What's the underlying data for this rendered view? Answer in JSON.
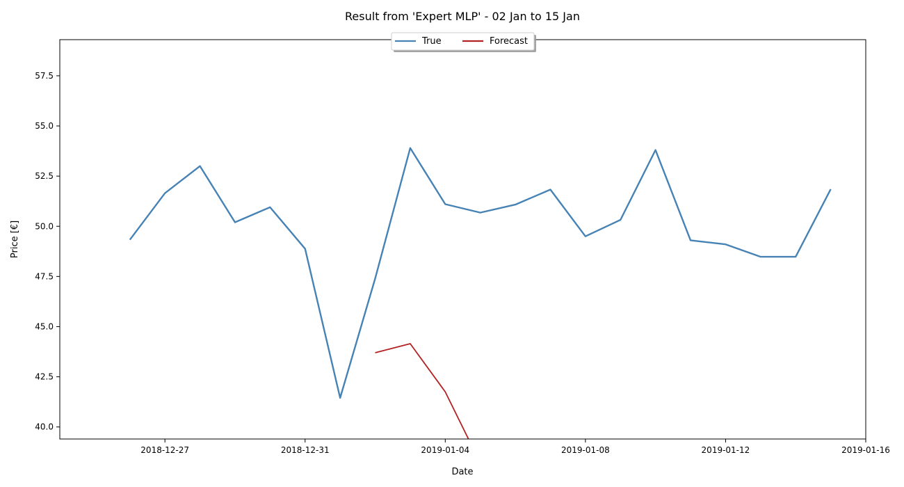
{
  "chart_data": {
    "type": "line",
    "title": "Result from 'Expert MLP' - 02 Jan to 15 Jan",
    "xlabel": "Date",
    "ylabel": "Price [€]",
    "xlim": [
      "2018-12-24",
      "2019-01-16"
    ],
    "ylim": [
      39.4,
      59.3
    ],
    "x_ticks": [
      "2018-12-27",
      "2018-12-31",
      "2019-01-04",
      "2019-01-08",
      "2019-01-12",
      "2019-01-16"
    ],
    "y_ticks": [
      40.0,
      42.5,
      45.0,
      47.5,
      50.0,
      52.5,
      55.0,
      57.5
    ],
    "y_tick_labels": [
      "40.0",
      "42.5",
      "45.0",
      "47.5",
      "50.0",
      "52.5",
      "55.0",
      "57.5"
    ],
    "grid": false,
    "legend_placement": "top-center",
    "series": [
      {
        "name": "True",
        "color": "#4682b4",
        "points": [
          [
            "2018-12-26",
            49.33
          ],
          [
            "2018-12-27",
            51.65
          ],
          [
            "2018-12-28",
            53.0
          ],
          [
            "2018-12-29",
            50.2
          ],
          [
            "2018-12-30",
            50.95
          ],
          [
            "2018-12-31",
            48.88
          ],
          [
            "2019-01-01",
            41.45
          ],
          [
            "2019-01-02",
            47.4
          ],
          [
            "2019-01-03",
            53.9
          ],
          [
            "2019-01-04",
            51.1
          ],
          [
            "2019-01-05",
            50.68
          ],
          [
            "2019-01-06",
            51.08
          ],
          [
            "2019-01-07",
            51.83
          ],
          [
            "2019-01-08",
            49.5
          ],
          [
            "2019-01-09",
            50.32
          ],
          [
            "2019-01-10",
            53.8
          ],
          [
            "2019-01-11",
            49.3
          ],
          [
            "2019-01-12",
            49.1
          ],
          [
            "2019-01-13",
            48.48
          ],
          [
            "2019-01-14",
            48.48
          ],
          [
            "2019-01-15",
            51.85
          ]
        ]
      },
      {
        "name": "Forecast",
        "color": "#b22222",
        "points": [
          [
            "2019-01-02",
            43.7
          ],
          [
            "2019-01-03",
            44.15
          ],
          [
            "2019-01-04",
            41.75
          ],
          [
            "2019-01-05",
            38.2
          ]
        ]
      }
    ]
  }
}
